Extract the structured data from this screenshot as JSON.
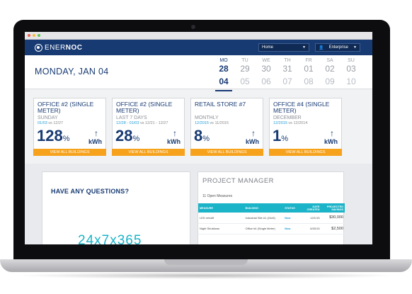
{
  "app": {
    "logo_part1": "ENER",
    "logo_part2": "NOC"
  },
  "topnav": {
    "home_select": "Home",
    "enterprise_select": "Enterprise"
  },
  "dateband": {
    "today_label": "MONDAY, JAN 04",
    "days": [
      {
        "dow": "MO",
        "num": "28",
        "next": "04",
        "active": true
      },
      {
        "dow": "TU",
        "num": "29",
        "next": "05"
      },
      {
        "dow": "WE",
        "num": "30",
        "next": "06"
      },
      {
        "dow": "TH",
        "num": "31",
        "next": "07"
      },
      {
        "dow": "FR",
        "num": "01",
        "next": "08"
      },
      {
        "dow": "SA",
        "num": "02",
        "next": "09"
      },
      {
        "dow": "SU",
        "num": "03",
        "next": "10"
      }
    ]
  },
  "cards": [
    {
      "title": "OFFICE #2 (SINGLE METER)",
      "sub1": "SUNDAY",
      "sub2_hi": "01/03",
      "sub2_rest": " vs 12/27",
      "value": "128",
      "pct": "%",
      "unit": "kWh",
      "button": "VIEW ALL BUILDINGS"
    },
    {
      "title": "OFFICE #2 (SINGLE METER)",
      "sub1": "LAST 7 DAYS",
      "sub2_hi": "12/28 - 01/03",
      "sub2_rest": " vs 12/21 - 12/27",
      "value": "28",
      "pct": "%",
      "unit": "kWh",
      "button": "VIEW ALL BUILDINGS"
    },
    {
      "title": "RETAIL STORE #7",
      "sub1": "MONTHLY",
      "sub2_hi": "12/2015",
      "sub2_rest": " vs 11/2015",
      "value": "8",
      "pct": "%",
      "unit": "kWh",
      "button": "VIEW ALL BUILDINGS"
    },
    {
      "title": "OFFICE #4 (SINGLE METER)",
      "sub1": "DECEMBER",
      "sub2_hi": "12/2015",
      "sub2_rest": " vs 12/2014",
      "value": "1",
      "pct": "%",
      "unit": "kWh",
      "button": "VIEW ALL BUILDINGS"
    }
  ],
  "questions": {
    "title": "HAVE ANY QUESTIONS?",
    "big_text": "24x7x365"
  },
  "project_manager": {
    "title": "PROJECT MANAGER",
    "open_measures": "11 Open Measures",
    "columns": [
      "MEASURE",
      "BUILDING",
      "STATUS",
      "DATE CREATED",
      "PROJECTED SAVINGS"
    ],
    "rows": [
      [
        "LED retrofit",
        "Industrial Site #1 (24x5)",
        "New",
        "12/1/15",
        "$30,000"
      ],
      [
        "Night Shutdown",
        "Office #4 (Single Meter)",
        "New",
        "6/30/15",
        "$2,500"
      ],
      [
        "",
        "",
        "",
        "",
        ""
      ]
    ]
  },
  "colors": {
    "nav_bg": "#173a73",
    "accent_teal": "#1ab3c8",
    "button_orange": "#f6a21c",
    "link_blue": "#1e9bd7"
  }
}
